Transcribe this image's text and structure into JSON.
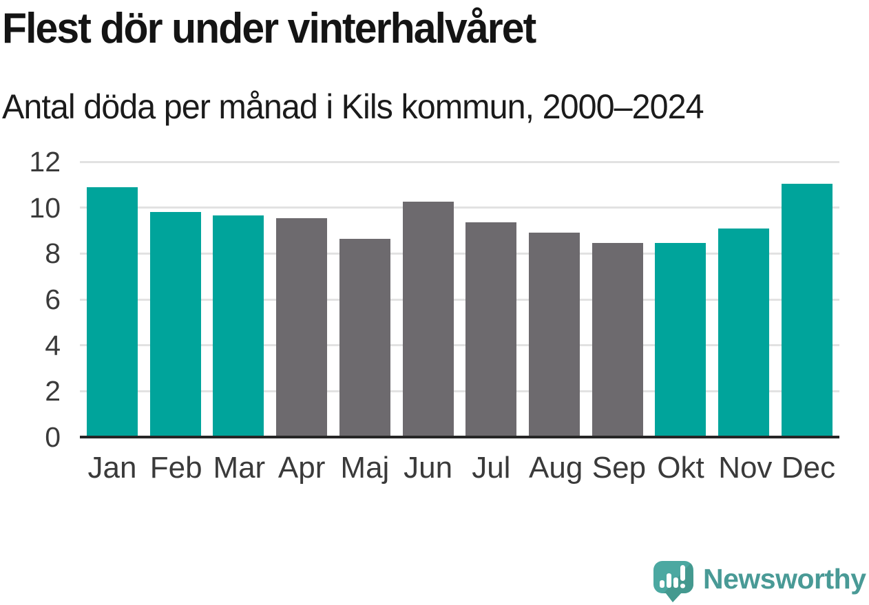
{
  "header": {
    "title": "Flest dör under vinterhalvåret",
    "subtitle": "Antal döda per månad i Kils kommun, 2000–2024"
  },
  "chart_data": {
    "type": "bar",
    "title": "Flest dör under vinterhalvåret",
    "subtitle": "Antal döda per månad i Kils kommun, 2000–2024",
    "categories": [
      "Jan",
      "Feb",
      "Mar",
      "Apr",
      "Maj",
      "Jun",
      "Jul",
      "Aug",
      "Sep",
      "Okt",
      "Nov",
      "Dec"
    ],
    "values": [
      10.9,
      9.8,
      9.65,
      9.55,
      8.65,
      10.25,
      9.35,
      8.9,
      8.45,
      8.45,
      9.1,
      11.05
    ],
    "bar_colors": [
      "#00a49b",
      "#00a49b",
      "#00a49b",
      "#6d6a6e",
      "#6d6a6e",
      "#6d6a6e",
      "#6d6a6e",
      "#6d6a6e",
      "#6d6a6e",
      "#00a49b",
      "#00a49b",
      "#00a49b"
    ],
    "highlighted_categories": [
      "Jan",
      "Feb",
      "Mar",
      "Okt",
      "Nov",
      "Dec"
    ],
    "xlabel": "",
    "ylabel": "",
    "ylim": [
      0,
      12
    ],
    "yticks": [
      0,
      2,
      4,
      6,
      8,
      10,
      12
    ],
    "grid": true,
    "legend": false
  },
  "colors": {
    "bar_highlight": "#00a49b",
    "bar_muted": "#6d6a6e",
    "gridline": "#e2e2e2",
    "axis_line": "#262626",
    "tick_text": "#3a3a3a",
    "title_text": "#141414"
  },
  "branding": {
    "wordmark": "Newsworthy",
    "logo_icon": "newsworthy-speech-bubble-bar-chart-icon",
    "bubble_color": "#4ba8a1",
    "bubble_shade_color": "#44998f",
    "glyph_color": "#ffffff",
    "wordmark_color": "#499a96"
  }
}
